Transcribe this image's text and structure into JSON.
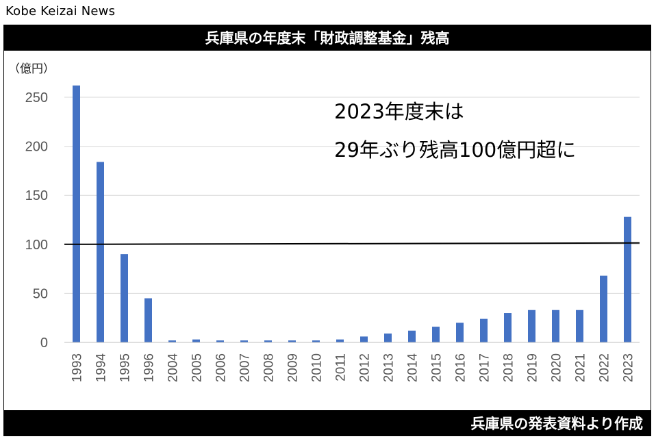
{
  "source": "Kobe Keizai News",
  "title": "兵庫県の年度末「財政調整基金」残高",
  "footer": "兵庫県の発表資料より作成",
  "colors": {
    "bar": "#4472C4",
    "grid": "#d9d9d9",
    "reference_line": "#000000",
    "title_bg": "#000000"
  },
  "chart_data": {
    "type": "bar",
    "title": "兵庫県の年度末「財政調整基金」残高",
    "unit_label": "（億円）",
    "categories": [
      "1993",
      "1994",
      "1995",
      "1996",
      "2004",
      "2005",
      "2006",
      "2007",
      "2008",
      "2009",
      "2010",
      "2011",
      "2012",
      "2013",
      "2014",
      "2015",
      "2016",
      "2017",
      "2018",
      "2019",
      "2020",
      "2021",
      "2022",
      "2023"
    ],
    "values": [
      262,
      184,
      90,
      45,
      2,
      3,
      2,
      2,
      2,
      2,
      2,
      3,
      6,
      9,
      12,
      16,
      20,
      24,
      30,
      33,
      33,
      33,
      68,
      128
    ],
    "ylim": [
      0,
      250
    ],
    "yticks": [
      0,
      50,
      100,
      150,
      200,
      250
    ],
    "grid": true,
    "reference_line": 100,
    "annotations": [
      "2023年度末は",
      "29年ぶり残高100億円超に"
    ]
  }
}
